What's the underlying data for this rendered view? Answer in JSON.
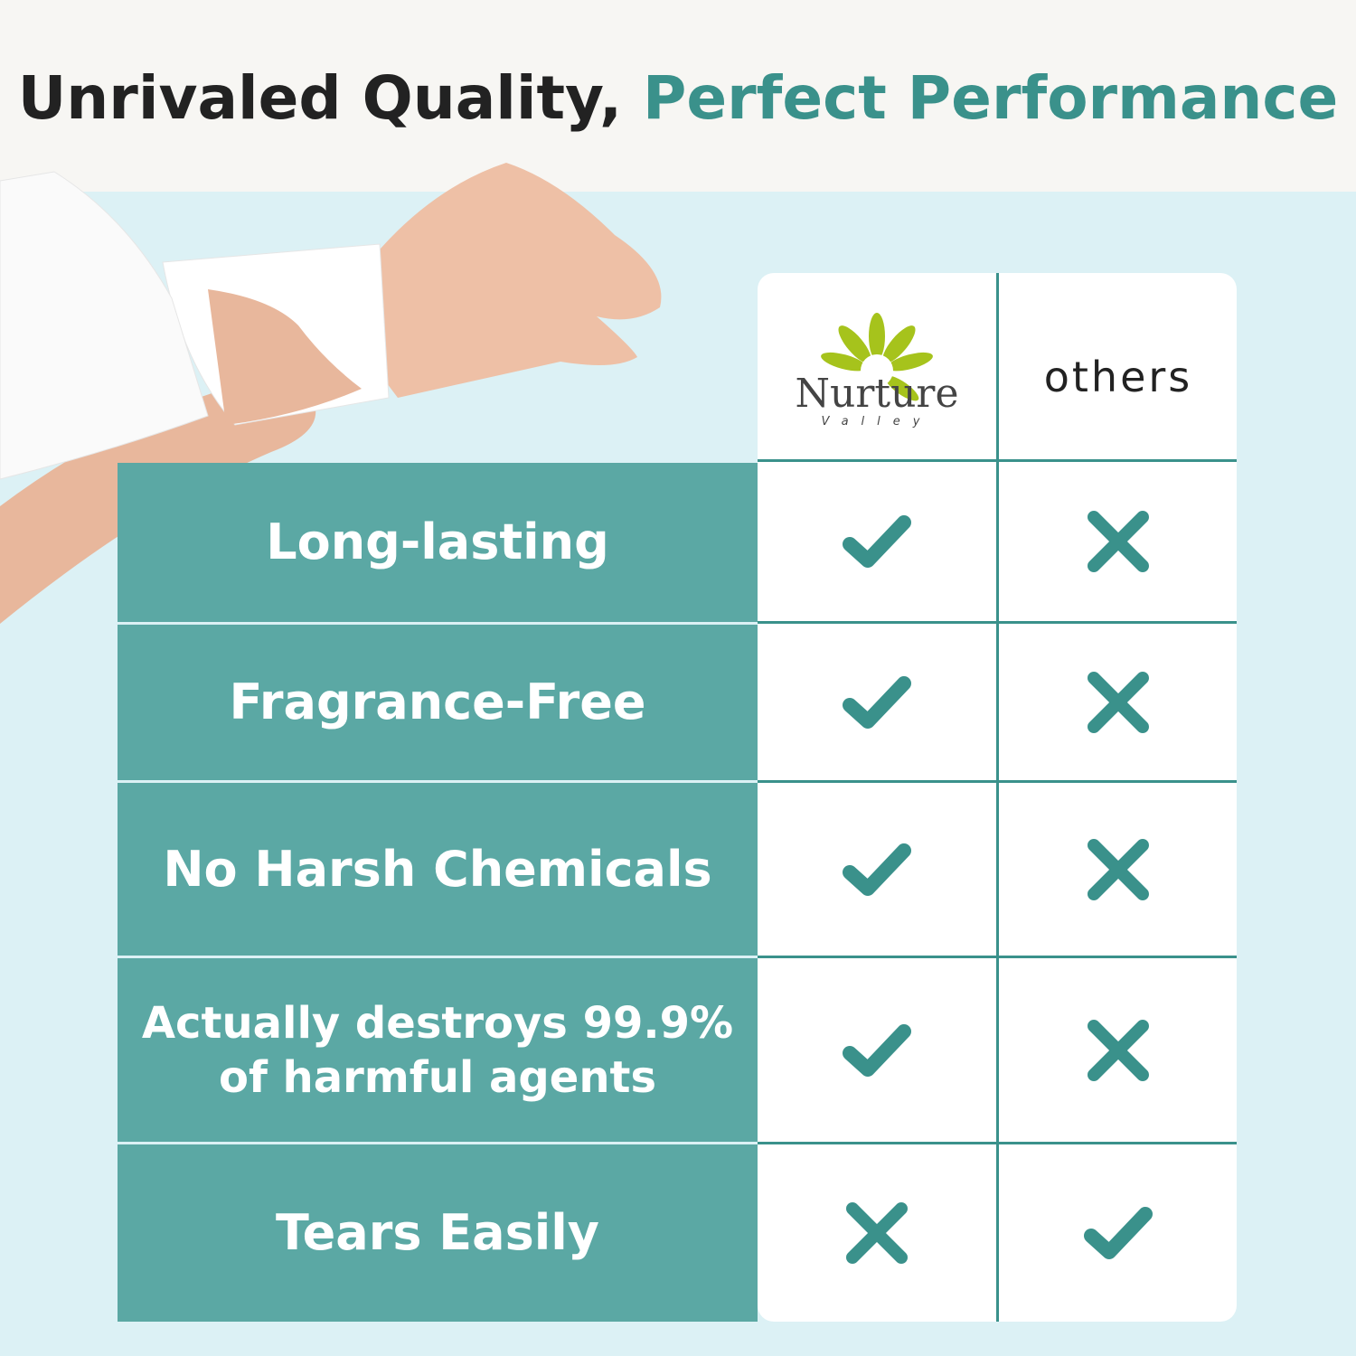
{
  "title": {
    "part1": "Unrivaled Quality, ",
    "part2": "Perfect Performance"
  },
  "colors": {
    "accent": "#3a918b",
    "label_bg": "#5ba8a4",
    "background": "#dcf1f5",
    "logo_green": "#a6c31c"
  },
  "header": {
    "brand_logo": "Nurture Valley",
    "brand_name": "Nurture",
    "brand_sub": "Valley",
    "others": "others"
  },
  "rows": [
    {
      "label": "Long-lasting",
      "nurture": "check-icon",
      "others": "cross-icon"
    },
    {
      "label": "Fragrance-Free",
      "nurture": "check-icon",
      "others": "cross-icon"
    },
    {
      "label": "No Harsh Chemicals",
      "nurture": "check-icon",
      "others": "cross-icon"
    },
    {
      "label": "Actually destroys 99.9% of harmful agents",
      "nurture": "check-icon",
      "others": "cross-icon"
    },
    {
      "label": "Tears Easily",
      "nurture": "cross-icon",
      "others": "check-icon"
    }
  ]
}
